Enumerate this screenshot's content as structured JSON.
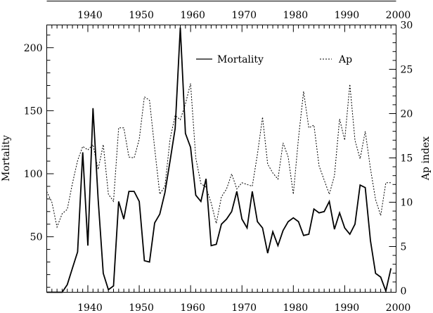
{
  "chart_data": {
    "type": "line",
    "title": "",
    "xlabel": "",
    "ylabel": "Mortality",
    "y2label": "Ap index",
    "xlim": [
      1932,
      2000
    ],
    "ylim": [
      6,
      218
    ],
    "y2lim": [
      -0.16,
      30
    ],
    "x_ticks": [
      1940,
      1950,
      1960,
      1970,
      1980,
      1990,
      2000
    ],
    "y_ticks": [
      50,
      100,
      150,
      200
    ],
    "y2_ticks": [
      0,
      5,
      10,
      15,
      20,
      25,
      30
    ],
    "grid": false,
    "legend_placement": "top-center",
    "x": [
      1932,
      1933,
      1934,
      1935,
      1936,
      1937,
      1938,
      1939,
      1940,
      1941,
      1942,
      1943,
      1944,
      1945,
      1946,
      1947,
      1948,
      1949,
      1950,
      1951,
      1952,
      1953,
      1954,
      1955,
      1956,
      1957,
      1958,
      1959,
      1960,
      1961,
      1962,
      1963,
      1964,
      1965,
      1966,
      1967,
      1968,
      1969,
      1970,
      1971,
      1972,
      1973,
      1974,
      1975,
      1976,
      1977,
      1978,
      1979,
      1980,
      1981,
      1982,
      1983,
      1984,
      1985,
      1986,
      1987,
      1988,
      1989,
      1990,
      1991,
      1992,
      1993,
      1994,
      1995,
      1996,
      1997,
      1998,
      1999
    ],
    "series": [
      {
        "name": "Mortality",
        "axis": "left",
        "style": "solid",
        "values": [
          3,
          5,
          4,
          5,
          12,
          25,
          38,
          117,
          43,
          152,
          80,
          21,
          8,
          11,
          78,
          64,
          86,
          86,
          78,
          31,
          30,
          61,
          68,
          85,
          110,
          136,
          216,
          132,
          121,
          83,
          78,
          96,
          43,
          44,
          60,
          64,
          70,
          86,
          64,
          57,
          86,
          62,
          57,
          37,
          54,
          43,
          55,
          62,
          65,
          62,
          51,
          52,
          72,
          69,
          70,
          78,
          56,
          69,
          57,
          52,
          60,
          91,
          89,
          47,
          21,
          18,
          7,
          25
        ]
      },
      {
        "name": "Ap",
        "axis": "right",
        "style": "dotted",
        "values": [
          11.2,
          10,
          7.2,
          8.7,
          9.2,
          12.1,
          14.7,
          16.3,
          15.9,
          16.5,
          13.7,
          16.5,
          10.9,
          10.1,
          18.4,
          18.4,
          15.1,
          15,
          17.1,
          21.9,
          21.5,
          16.1,
          10.9,
          11.8,
          17.1,
          19.8,
          19.3,
          21.1,
          23.4,
          15,
          12.1,
          11.7,
          9.9,
          7.6,
          10.6,
          11.5,
          13.2,
          11.5,
          12.2,
          12,
          11.8,
          15.4,
          19.6,
          14.3,
          13.3,
          12.6,
          16.7,
          15.1,
          10.9,
          17.2,
          22.5,
          18.4,
          18.7,
          14.1,
          12.5,
          10.9,
          13,
          19.4,
          17,
          23.3,
          17,
          14.9,
          18,
          13.8,
          10.3,
          8.5,
          12.2,
          12.2
        ]
      }
    ]
  }
}
